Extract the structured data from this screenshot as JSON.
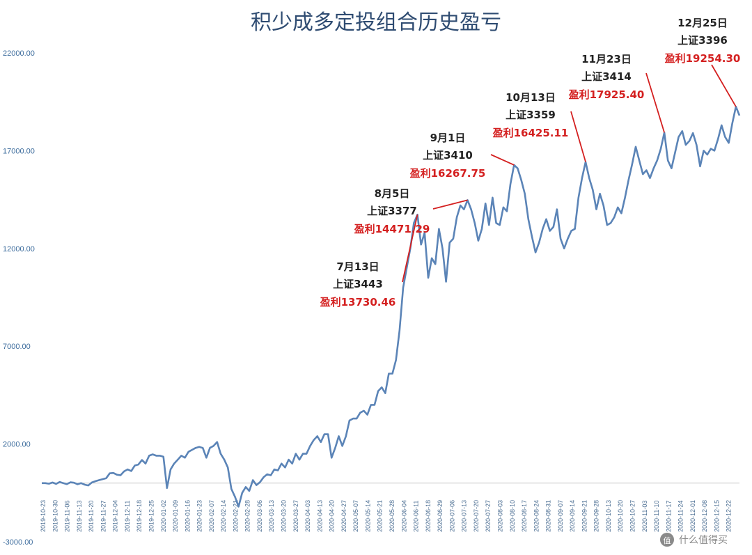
{
  "watermark": "值 什么值得买",
  "chart_data": {
    "type": "line",
    "title": "积少成多定投组合历史盈亏",
    "xlabel": "",
    "ylabel": "",
    "ylim": [
      -3000,
      22000
    ],
    "y_ticks": [
      "22000.00",
      "17000.00",
      "12000.00",
      "7000.00",
      "2000.00",
      "-3000.00"
    ],
    "grid": false,
    "line_color": "#5b84b7",
    "annotation_color": "#d42020",
    "x_tick_labels": [
      "2019-10-23",
      "2019-10-30",
      "2019-11-06",
      "2019-11-13",
      "2019-11-20",
      "2019-11-27",
      "2019-12-04",
      "2019-12-11",
      "2019-12-18",
      "2019-12-25",
      "2020-01-02",
      "2020-01-09",
      "2020-01-16",
      "2020-01-23",
      "2020-02-07",
      "2020-02-14",
      "2020-02-21",
      "2020-02-28",
      "2020-03-06",
      "2020-03-13",
      "2020-03-20",
      "2020-03-27",
      "2020-04-03",
      "2020-04-13",
      "2020-04-20",
      "2020-04-27",
      "2020-05-07",
      "2020-05-14",
      "2020-05-21",
      "2020-05-28",
      "2020-06-04",
      "2020-06-11",
      "2020-06-18",
      "2020-06-29",
      "2020-07-06",
      "2020-07-13",
      "2020-07-20",
      "2020-07-27",
      "2020-08-03",
      "2020-08-10",
      "2020-08-17",
      "2020-08-24",
      "2020-08-31",
      "2020-09-07",
      "2020-09-14",
      "2020-09-21",
      "2020-09-28",
      "2020-10-13",
      "2020-10-20",
      "2020-10-27",
      "2020-11-03",
      "2020-11-10",
      "2020-11-17",
      "2020-11-24",
      "2020-12-01",
      "2020-12-08",
      "2020-12-15",
      "2020-12-22"
    ],
    "series": [
      {
        "values": [
          0,
          0,
          -30,
          30,
          -40,
          60,
          0,
          -50,
          40,
          20,
          -60,
          0,
          -80,
          -120,
          30,
          100,
          150,
          200,
          250,
          500,
          520,
          430,
          400,
          600,
          700,
          620,
          900,
          950,
          1180,
          1000,
          1400,
          1470,
          1400,
          1400,
          1350,
          -250,
          700,
          1000,
          1200,
          1400,
          1300,
          1600,
          1700,
          1800,
          1850,
          1800,
          1300,
          1800,
          1900,
          2100,
          1500,
          1200,
          800,
          -300,
          -700,
          -1200,
          -500,
          -200,
          -400,
          150,
          -100,
          50,
          300,
          450,
          400,
          700,
          650,
          1000,
          800,
          1200,
          1000,
          1500,
          1200,
          1500,
          1500,
          1900,
          2200,
          2400,
          2100,
          2500,
          2500,
          1300,
          1800,
          2400,
          1900,
          2400,
          3200,
          3300,
          3300,
          3600,
          3700,
          3500,
          4000,
          4000,
          4700,
          4900,
          4600,
          5600,
          5600,
          6300,
          7800,
          10000,
          11000,
          12000,
          13300,
          13730.46,
          12200,
          12800,
          10500,
          11500,
          11200,
          13000,
          12000,
          10300,
          12300,
          12500,
          13600,
          14200,
          14000,
          14471.29,
          14000,
          13300,
          12400,
          13000,
          14300,
          13200,
          14600,
          13300,
          13200,
          14100,
          13900,
          15300,
          16267.75,
          16100,
          15500,
          14800,
          13500,
          12600,
          11800,
          12300,
          13000,
          13500,
          12900,
          13100,
          14000,
          12500,
          12000,
          12500,
          12900,
          13000,
          14600,
          15600,
          16425.11,
          15600,
          15000,
          14000,
          14800,
          14200,
          13200,
          13300,
          13600,
          14100,
          13800,
          14600,
          15500,
          16300,
          17200,
          16500,
          15800,
          16000,
          15600,
          16100,
          16500,
          17100,
          17925.4,
          16500,
          16100,
          16900,
          17700,
          18000,
          17300,
          17500,
          17900,
          17300,
          16200,
          17000,
          16800,
          17100,
          17000,
          17600,
          18300,
          17700,
          17400,
          18400,
          19254.3,
          18800
        ]
      }
    ],
    "annotations": [
      {
        "date": "7月13日",
        "index": "上证3443",
        "profit": "盈利13730.46"
      },
      {
        "date": "8月5日",
        "index": "上证3377",
        "profit": "盈利14471.29"
      },
      {
        "date": "9月1日",
        "index": "上证3410",
        "profit": "盈利16267.75"
      },
      {
        "date": "10月13日",
        "index": "上证3359",
        "profit": "盈利16425.11"
      },
      {
        "date": "11月23日",
        "index": "上证3414",
        "profit": "盈利17925.40"
      },
      {
        "date": "12月25日",
        "index": "上证3396",
        "profit": "盈利19254.30"
      }
    ]
  }
}
